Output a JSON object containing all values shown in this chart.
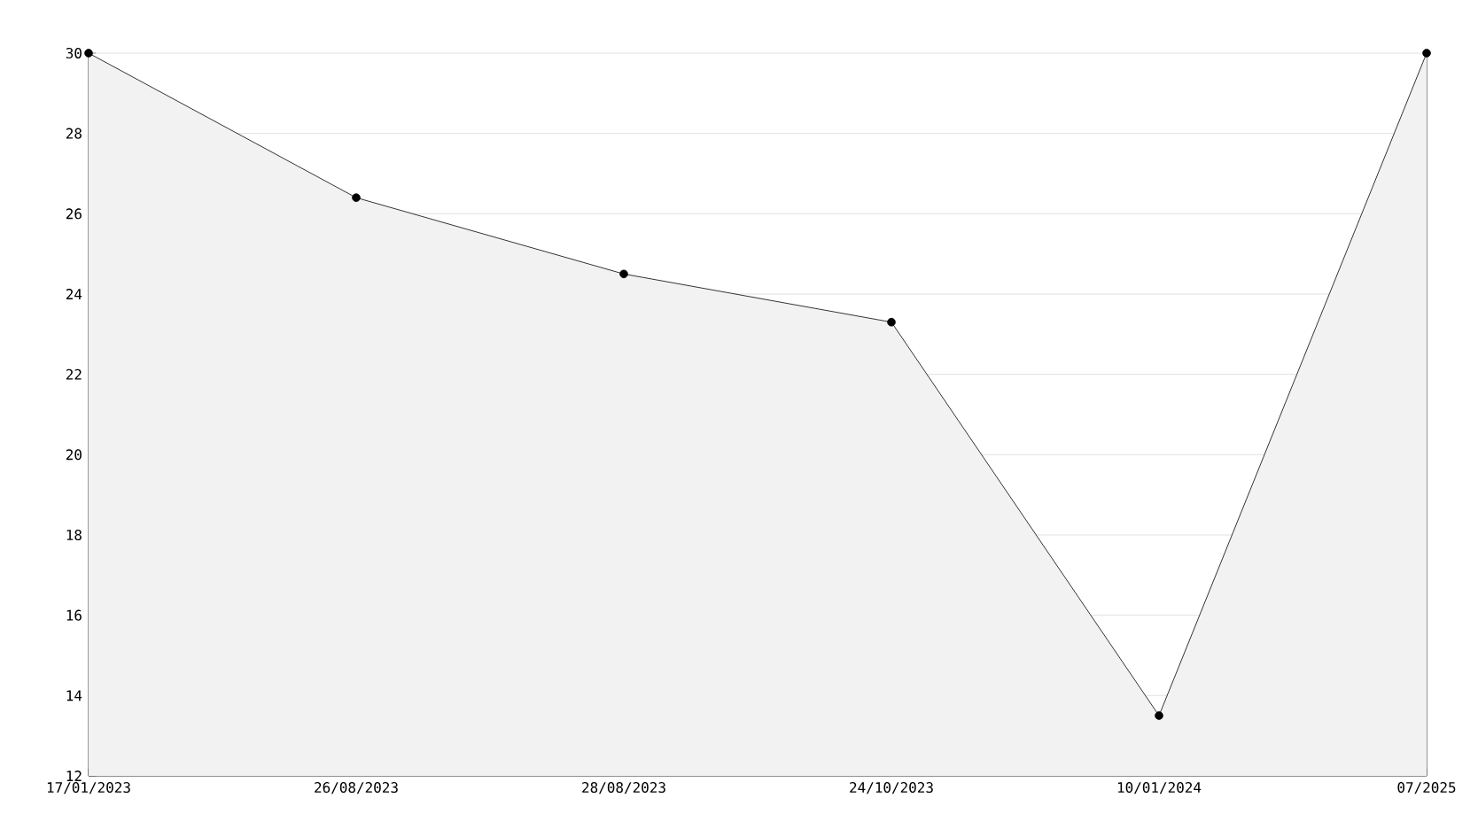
{
  "chart_data": {
    "type": "area",
    "categories": [
      "17/01/2023",
      "26/08/2023",
      "28/08/2023",
      "24/10/2023",
      "10/01/2024",
      "07/2025"
    ],
    "values": [
      30,
      26.4,
      24.5,
      23.3,
      13.5,
      30
    ],
    "color": "#000000",
    "ylim": [
      12,
      30
    ],
    "yticks": [
      12,
      14,
      16,
      18,
      20,
      22,
      24,
      26,
      28,
      30
    ],
    "grid": "y",
    "marker": "circle",
    "line_style": "solid"
  }
}
